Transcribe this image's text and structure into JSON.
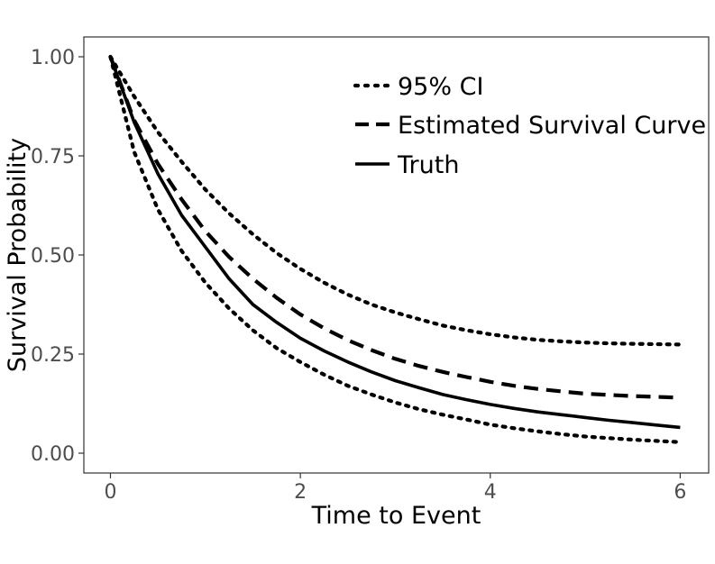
{
  "chart_data": {
    "type": "line",
    "title": "",
    "xlabel": "Time to Event",
    "ylabel": "Survival Probability",
    "xlim": [
      -0.28,
      6.3
    ],
    "ylim": [
      -0.05,
      1.05
    ],
    "xticks": [
      0,
      2,
      4,
      6
    ],
    "xtick_labels": [
      "0",
      "2",
      "4",
      "6"
    ],
    "yticks": [
      0.0,
      0.25,
      0.5,
      0.75,
      1.0
    ],
    "ytick_labels": [
      "0.00",
      "0.25",
      "0.50",
      "0.75",
      "1.00"
    ],
    "grid": false,
    "legend_position": "top-right",
    "x": [
      0,
      0.25,
      0.5,
      0.75,
      1.0,
      1.25,
      1.5,
      1.75,
      2.0,
      2.25,
      2.5,
      2.75,
      3.0,
      3.25,
      3.5,
      3.75,
      4.0,
      4.25,
      4.5,
      4.75,
      5.0,
      5.25,
      5.5,
      5.75,
      6.0
    ],
    "series": [
      {
        "name": "95% CI",
        "style": "dotted",
        "color": "#000000",
        "values": [
          1.0,
          0.9,
          0.81,
          0.735,
          0.665,
          0.605,
          0.552,
          0.505,
          0.465,
          0.43,
          0.4,
          0.375,
          0.355,
          0.338,
          0.322,
          0.31,
          0.3,
          0.292,
          0.286,
          0.282,
          0.279,
          0.277,
          0.276,
          0.275,
          0.274
        ]
      },
      {
        "name": "95% CI",
        "style": "dotted",
        "color": "#000000",
        "values": [
          1.0,
          0.76,
          0.615,
          0.51,
          0.43,
          0.365,
          0.31,
          0.265,
          0.23,
          0.198,
          0.17,
          0.148,
          0.128,
          0.111,
          0.097,
          0.085,
          0.072,
          0.063,
          0.055,
          0.048,
          0.042,
          0.038,
          0.034,
          0.031,
          0.028
        ]
      },
      {
        "name": "Estimated Survival Curve",
        "style": "dashed",
        "color": "#000000",
        "values": [
          1.0,
          0.84,
          0.73,
          0.64,
          0.56,
          0.495,
          0.44,
          0.392,
          0.35,
          0.315,
          0.285,
          0.26,
          0.238,
          0.22,
          0.205,
          0.192,
          0.18,
          0.17,
          0.162,
          0.156,
          0.15,
          0.147,
          0.144,
          0.142,
          0.14
        ]
      },
      {
        "name": "Truth",
        "style": "solid",
        "color": "#000000",
        "values": [
          1.0,
          0.835,
          0.705,
          0.6,
          0.52,
          0.44,
          0.375,
          0.33,
          0.29,
          0.258,
          0.23,
          0.205,
          0.183,
          0.165,
          0.148,
          0.135,
          0.123,
          0.113,
          0.104,
          0.097,
          0.09,
          0.083,
          0.077,
          0.071,
          0.065
        ]
      }
    ],
    "legend": [
      {
        "label": "95% CI",
        "style": "dotted"
      },
      {
        "label": "Estimated Survival Curve",
        "style": "dashed"
      },
      {
        "label": "Truth",
        "style": "solid"
      }
    ]
  }
}
